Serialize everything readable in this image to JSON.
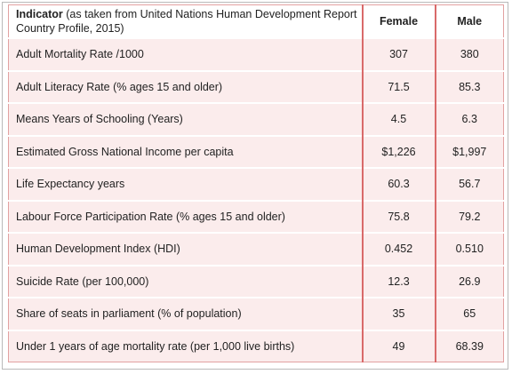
{
  "table": {
    "header": {
      "indicator_bold": "Indicator",
      "indicator_note": " (as taken from United Nations Human Development Report Country Profile, 2015)",
      "female": "Female",
      "male": "Male"
    },
    "rows": [
      {
        "indicator": "Adult Mortality Rate  /1000",
        "female": "307",
        "male": "380"
      },
      {
        "indicator": "Adult Literacy Rate (% ages 15 and older)",
        "female": "71.5",
        "male": "85.3"
      },
      {
        "indicator": "Means Years of Schooling (Years)",
        "female": "4.5",
        "male": "6.3"
      },
      {
        "indicator": "Estimated Gross National Income per capita",
        "female": "$1,226",
        "male": "$1,997"
      },
      {
        "indicator": "Life Expectancy years",
        "female": "60.3",
        "male": "56.7"
      },
      {
        "indicator": "Labour Force Participation Rate (% ages 15 and older)",
        "female": "75.8",
        "male": "79.2"
      },
      {
        "indicator": "Human Development Index (HDI)",
        "female": "0.452",
        "male": "0.510"
      },
      {
        "indicator": "Suicide Rate (per 100,000)",
        "female": "12.3",
        "male": "26.9"
      },
      {
        "indicator": "Share of seats in parliament (% of population)",
        "female": "35",
        "male": "65"
      },
      {
        "indicator": "Under 1 years of age mortality rate (per 1,000 live births)",
        "female": "49",
        "male": "68.39"
      }
    ]
  },
  "colors": {
    "row_fill": "#fbecec",
    "divider_red": "#d96a6a",
    "cell_border": "#e2a1a1"
  }
}
